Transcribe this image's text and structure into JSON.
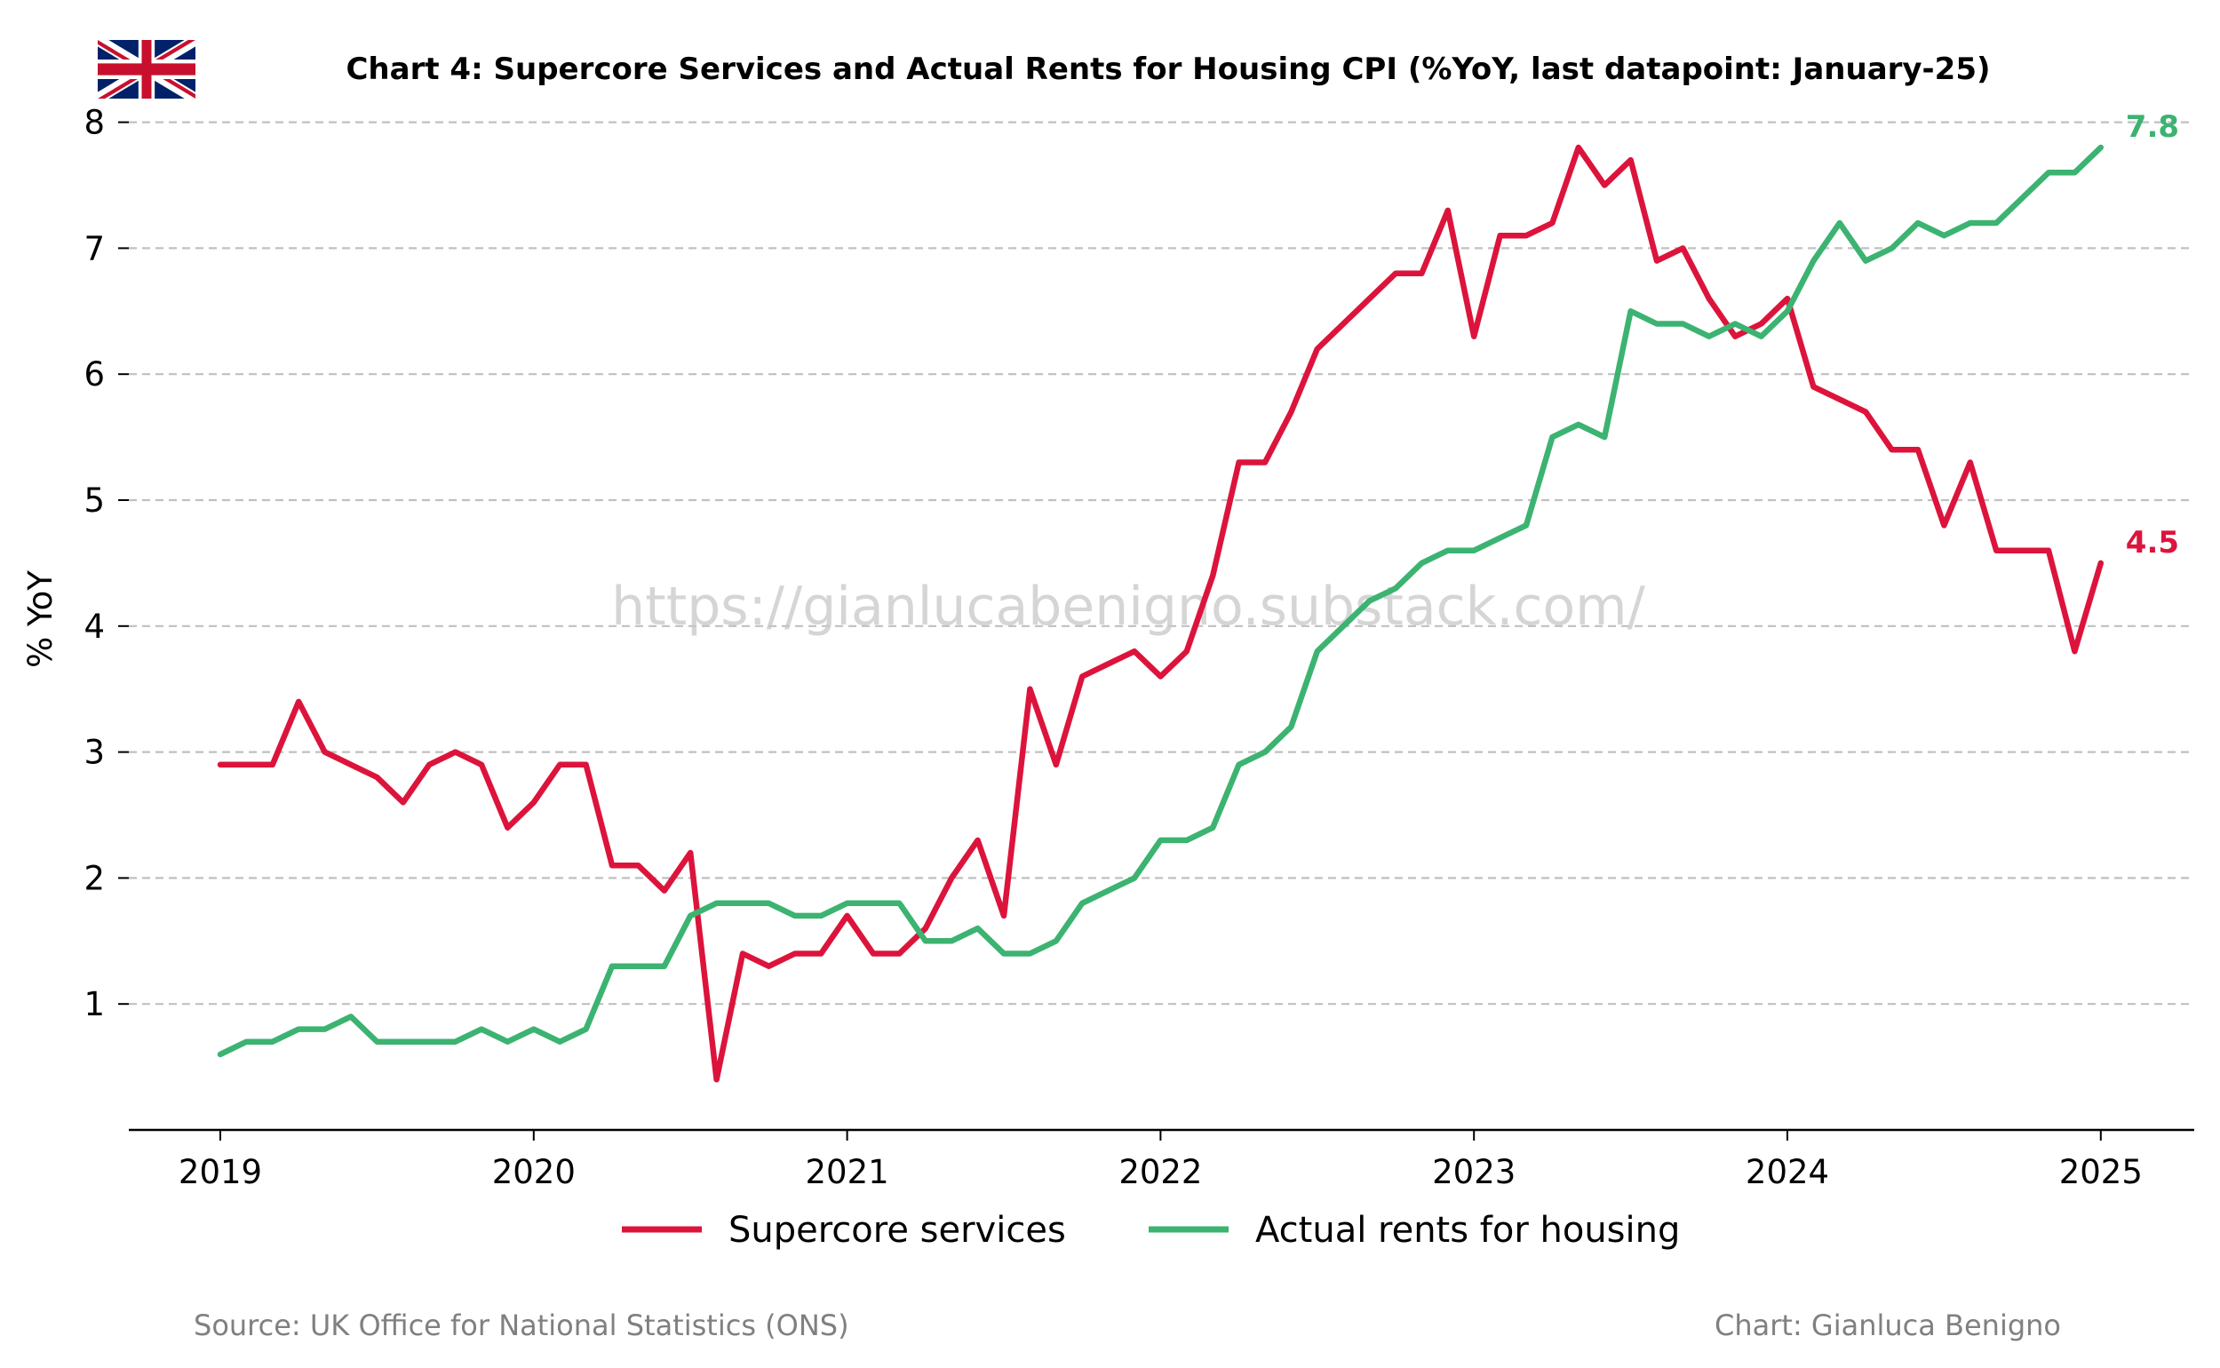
{
  "header": {
    "title": "Chart 4: Supercore Services and Actual Rents for Housing CPI (%YoY, last datapoint: January-25)",
    "flag_icon": "uk-flag-icon"
  },
  "watermark": "https://gianlucabenigno.substack.com/",
  "footer": {
    "source": "Source: UK Office for National Statistics (ONS)",
    "credit": "Chart: Gianluca Benigno"
  },
  "colors": {
    "supercore": "#dc143c",
    "rents": "#3cb371",
    "grid": "#c0c0c0"
  },
  "chart_data": {
    "type": "line",
    "title": "Chart 4: Supercore Services and Actual Rents for Housing CPI (%YoY, last datapoint: January-25)",
    "xlabel": "",
    "ylabel": "% YoY",
    "x_start": "2019-01",
    "x_ticks": [
      "2019",
      "2020",
      "2021",
      "2022",
      "2023",
      "2024",
      "2025"
    ],
    "y_ticks": [
      1,
      2,
      3,
      4,
      5,
      6,
      7,
      8
    ],
    "xlim": [
      "2018-09",
      "2025-04"
    ],
    "ylim": [
      0,
      8.1
    ],
    "grid": "horizontal dashed",
    "legend": "bottom-center",
    "series": [
      {
        "name": "Supercore services",
        "color": "#dc143c",
        "end_label": "4.5",
        "values": [
          2.9,
          2.9,
          2.9,
          3.4,
          3.0,
          2.9,
          2.8,
          2.6,
          2.9,
          3.0,
          2.9,
          2.4,
          2.6,
          2.9,
          2.9,
          2.1,
          2.1,
          1.9,
          2.2,
          0.4,
          1.4,
          1.3,
          1.4,
          1.4,
          1.7,
          1.4,
          1.4,
          1.6,
          2.0,
          2.3,
          1.7,
          3.5,
          2.9,
          3.6,
          3.7,
          3.8,
          3.6,
          3.8,
          4.4,
          5.3,
          5.3,
          5.7,
          6.2,
          6.4,
          6.6,
          6.8,
          6.8,
          7.3,
          6.3,
          7.1,
          7.1,
          7.2,
          7.8,
          7.5,
          7.7,
          6.9,
          7.0,
          6.6,
          6.3,
          6.4,
          6.6,
          5.9,
          5.8,
          5.7,
          5.4,
          5.4,
          4.8,
          5.3,
          4.6,
          4.6,
          4.6,
          3.8,
          4.5
        ]
      },
      {
        "name": "Actual rents for housing",
        "color": "#3cb371",
        "end_label": "7.8",
        "values": [
          0.6,
          0.7,
          0.7,
          0.8,
          0.8,
          0.9,
          0.7,
          0.7,
          0.7,
          0.7,
          0.8,
          0.7,
          0.8,
          0.7,
          0.8,
          1.3,
          1.3,
          1.3,
          1.7,
          1.8,
          1.8,
          1.8,
          1.7,
          1.7,
          1.8,
          1.8,
          1.8,
          1.5,
          1.5,
          1.6,
          1.4,
          1.4,
          1.5,
          1.8,
          1.9,
          2.0,
          2.3,
          2.3,
          2.4,
          2.9,
          3.0,
          3.2,
          3.8,
          4.0,
          4.2,
          4.3,
          4.5,
          4.6,
          4.6,
          4.7,
          4.8,
          5.5,
          5.6,
          5.5,
          6.5,
          6.4,
          6.4,
          6.3,
          6.4,
          6.3,
          6.5,
          6.9,
          7.2,
          6.9,
          7.0,
          7.2,
          7.1,
          7.2,
          7.2,
          7.4,
          7.6,
          7.6,
          7.8
        ]
      }
    ]
  }
}
